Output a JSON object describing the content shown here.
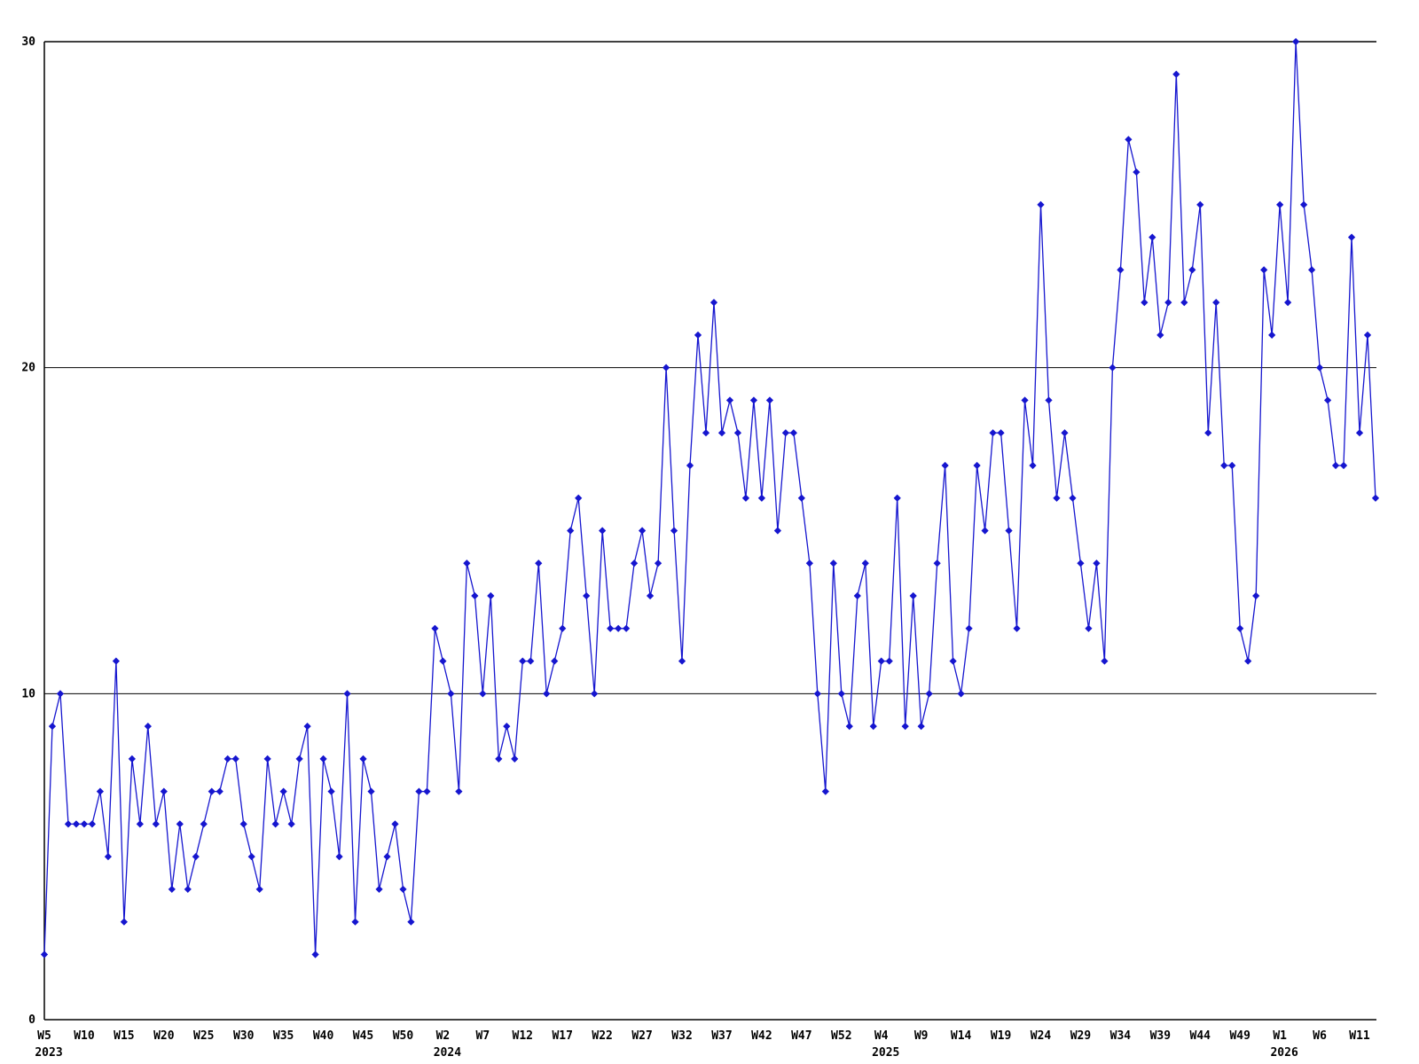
{
  "chart_data": {
    "type": "line",
    "title": "",
    "xlabel": "",
    "ylabel": "",
    "ylim": [
      0,
      30
    ],
    "yticks": [
      0,
      10,
      20,
      30
    ],
    "gridlines_y": [
      10,
      20
    ],
    "grid": "horizontal-only",
    "legend_position": "none",
    "line_color": "#1616cf",
    "marker": "diamond",
    "axis_color": "#000000",
    "x_unit": "ISO week",
    "x_tick_labels": [
      "W5",
      "W10",
      "W15",
      "W20",
      "W25",
      "W30",
      "W35",
      "W40",
      "W45",
      "W50",
      "W2",
      "W7",
      "W12",
      "W17",
      "W22",
      "W27",
      "W32",
      "W37",
      "W42",
      "W47",
      "W52",
      "W4",
      "W9",
      "W14",
      "W19",
      "W24",
      "W29",
      "W34",
      "W39",
      "W44",
      "W49",
      "W1",
      "W6",
      "W11"
    ],
    "year_labels": [
      {
        "tick_index": 0,
        "label": "2023"
      },
      {
        "tick_index": 10,
        "label": "2024"
      },
      {
        "tick_index": 21,
        "label": "2025"
      },
      {
        "tick_index": 31,
        "label": "2026"
      }
    ],
    "ticks_every_n_points": 5,
    "values": [
      2,
      9,
      10,
      6,
      6,
      6,
      6,
      7,
      5,
      11,
      3,
      8,
      6,
      9,
      6,
      7,
      4,
      6,
      4,
      5,
      6,
      7,
      7,
      8,
      8,
      6,
      5,
      4,
      8,
      6,
      7,
      6,
      8,
      9,
      2,
      8,
      7,
      5,
      10,
      3,
      8,
      7,
      4,
      5,
      6,
      4,
      3,
      7,
      7,
      12,
      11,
      10,
      7,
      14,
      13,
      10,
      13,
      8,
      9,
      8,
      11,
      11,
      14,
      10,
      11,
      12,
      15,
      16,
      13,
      10,
      15,
      12,
      12,
      12,
      14,
      15,
      13,
      14,
      20,
      15,
      11,
      17,
      21,
      18,
      22,
      18,
      19,
      18,
      16,
      19,
      16,
      19,
      15,
      18,
      18,
      16,
      14,
      10,
      7,
      14,
      10,
      9,
      13,
      14,
      9,
      11,
      11,
      16,
      9,
      13,
      9,
      10,
      14,
      17,
      11,
      10,
      12,
      17,
      15,
      18,
      18,
      15,
      12,
      19,
      17,
      25,
      19,
      16,
      18,
      16,
      14,
      12,
      14,
      11,
      20,
      23,
      27,
      26,
      22,
      24,
      21,
      22,
      29,
      22,
      23,
      25,
      18,
      22,
      17,
      17,
      12,
      11,
      13,
      23,
      21,
      25,
      22,
      30,
      25,
      23,
      20,
      19,
      17,
      17,
      24,
      18,
      21,
      16
    ]
  },
  "y_axis_tick_text": [
    "0",
    "10",
    "20",
    "30"
  ]
}
